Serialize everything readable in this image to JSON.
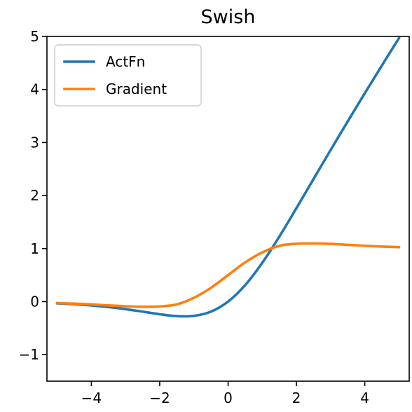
{
  "chart_data": {
    "type": "line",
    "title": "Swish",
    "xlabel": "",
    "ylabel": "",
    "xlim": [
      -5.3,
      5.3
    ],
    "ylim": [
      -1.5,
      5.0
    ],
    "x_ticks": [
      -4,
      -2,
      0,
      2,
      4
    ],
    "y_ticks": [
      -1,
      0,
      1,
      2,
      3,
      4,
      5
    ],
    "x_tick_labels": [
      "−4",
      "−2",
      "0",
      "2",
      "4"
    ],
    "y_tick_labels": [
      "−1",
      "0",
      "1",
      "2",
      "3",
      "4",
      "5"
    ],
    "grid": false,
    "legend_position": "upper-left",
    "x": [
      -5.0,
      -4.5,
      -4.0,
      -3.5,
      -3.0,
      -2.5,
      -2.0,
      -1.5,
      -1.0,
      -0.5,
      0.0,
      0.5,
      1.0,
      1.5,
      2.0,
      2.5,
      3.0,
      3.5,
      4.0,
      4.5,
      5.0
    ],
    "series": [
      {
        "name": "ActFn",
        "color": "#1f77b4",
        "values": [
          -0.033,
          -0.049,
          -0.072,
          -0.103,
          -0.142,
          -0.189,
          -0.238,
          -0.274,
          -0.269,
          -0.189,
          0.0,
          0.311,
          0.731,
          1.226,
          1.762,
          2.311,
          2.858,
          3.397,
          3.928,
          4.451,
          4.967
        ]
      },
      {
        "name": "Gradient",
        "color": "#ff7f0e",
        "values": [
          -0.027,
          -0.038,
          -0.053,
          -0.071,
          -0.088,
          -0.097,
          -0.091,
          -0.052,
          0.072,
          0.26,
          0.5,
          0.74,
          0.928,
          1.052,
          1.091,
          1.097,
          1.088,
          1.071,
          1.053,
          1.038,
          1.027
        ]
      }
    ]
  }
}
